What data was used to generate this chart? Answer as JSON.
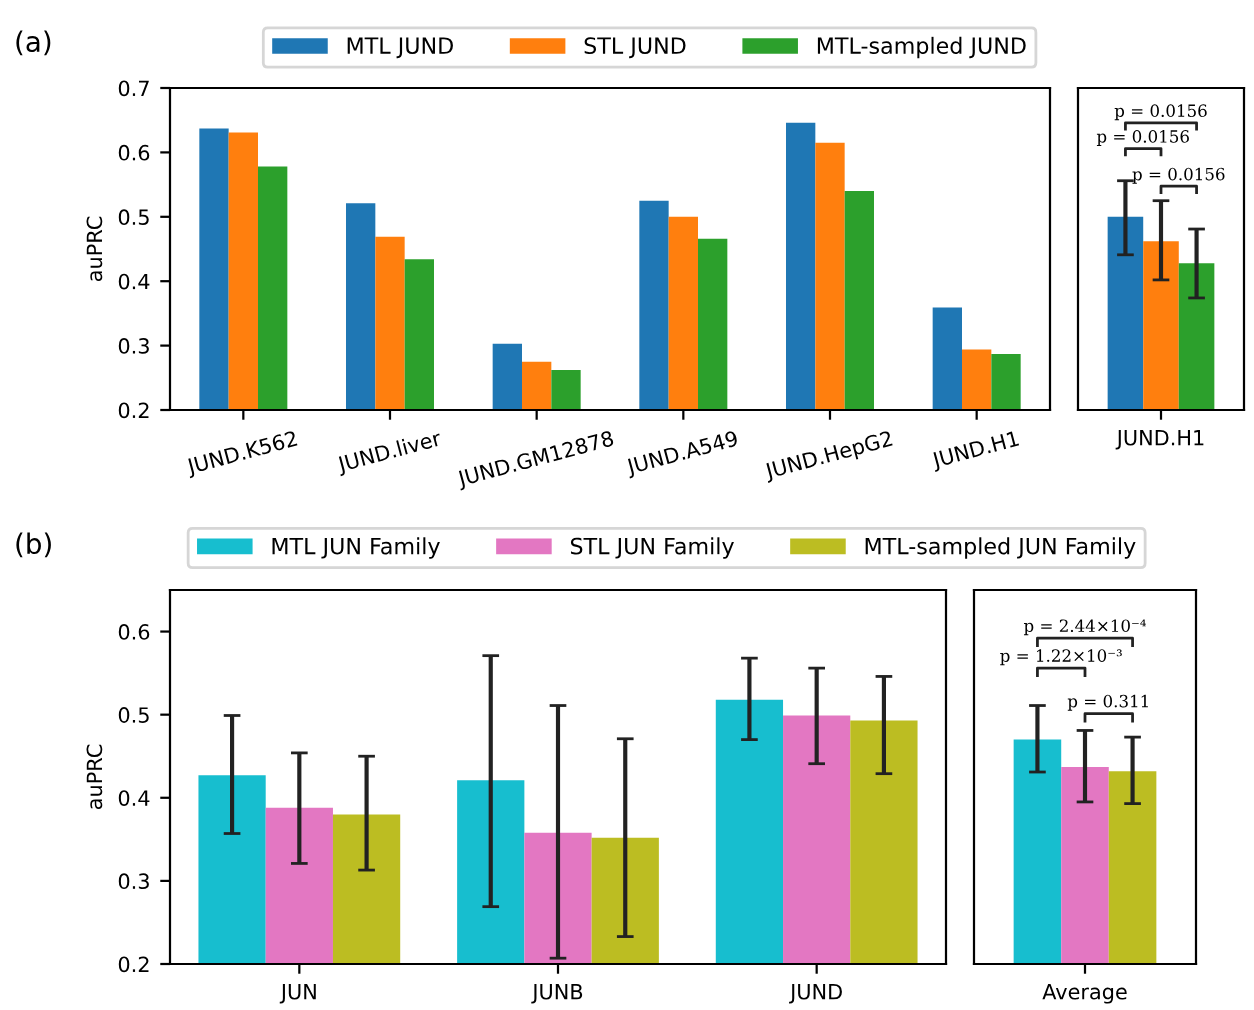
{
  "chart_data": [
    {
      "type": "bar",
      "title": "(a)",
      "ylabel": "auPRC",
      "categories": [
        "JUND.K562",
        "JUND.liver",
        "JUND.GM12878",
        "JUND.A549",
        "JUND.HepG2",
        "JUND.H1"
      ],
      "ylim": [
        0.2,
        0.7
      ],
      "yticks": [
        0.2,
        0.3,
        0.4,
        0.5,
        0.6,
        0.7
      ],
      "grid": false,
      "legend": "top",
      "series": [
        {
          "name": "MTL JUND",
          "color": "#1f77b4",
          "values": [
            0.637,
            0.521,
            0.303,
            0.525,
            0.646,
            0.359
          ]
        },
        {
          "name": "STL JUND",
          "color": "#ff7f0e",
          "values": [
            0.631,
            0.469,
            0.275,
            0.5,
            0.615,
            0.294
          ]
        },
        {
          "name": "MTL-sampled JUND",
          "color": "#2ca02c",
          "values": [
            0.578,
            0.434,
            0.262,
            0.466,
            0.54,
            0.287
          ]
        }
      ]
    },
    {
      "type": "bar",
      "categories": [
        "JUND.H1"
      ],
      "ylim": [
        0.2,
        0.7
      ],
      "yticks": [
        0.2,
        0.3,
        0.4,
        0.5,
        0.6,
        0.7
      ],
      "tick_labels": "x",
      "grid": false,
      "legend": false,
      "annotations": [
        "p = 0.0156",
        "p = 0.0156",
        "p = 0.0156"
      ],
      "series": [
        {
          "color": "#1f77b4",
          "values": [
            0.5
          ],
          "errors": [
            [
              0.441,
              0.556
            ]
          ]
        },
        {
          "color": "#ff7f0e",
          "values": [
            0.462
          ],
          "errors": [
            [
              0.402,
              0.525
            ]
          ]
        },
        {
          "color": "#2ca02c",
          "values": [
            0.428
          ],
          "errors": [
            [
              0.374,
              0.481
            ]
          ]
        }
      ]
    },
    {
      "type": "bar",
      "title": "(b)",
      "ylabel": "auPRC",
      "categories": [
        "JUN",
        "JUNB",
        "JUND"
      ],
      "ylim": [
        0.2,
        0.65
      ],
      "yticks": [
        0.2,
        0.3,
        0.4,
        0.5,
        0.6
      ],
      "grid": false,
      "legend": "top",
      "series": [
        {
          "name": "MTL JUN Family",
          "color": "#17becf",
          "values": [
            0.427,
            0.421,
            0.518
          ],
          "errors": [
            [
              0.357,
              0.499
            ],
            [
              0.269,
              0.571
            ],
            [
              0.47,
              0.568
            ]
          ]
        },
        {
          "name": "STL JUN Family",
          "color": "#e377c2",
          "values": [
            0.388,
            0.358,
            0.499
          ],
          "errors": [
            [
              0.321,
              0.454
            ],
            [
              0.207,
              0.511
            ],
            [
              0.441,
              0.556
            ]
          ]
        },
        {
          "name": "MTL-sampled JUN Family",
          "color": "#bcbd22",
          "values": [
            0.38,
            0.352,
            0.493
          ],
          "errors": [
            [
              0.313,
              0.45
            ],
            [
              0.233,
              0.471
            ],
            [
              0.429,
              0.546
            ]
          ]
        }
      ]
    },
    {
      "type": "bar",
      "categories": [
        "Average"
      ],
      "ylim": [
        0.2,
        0.65
      ],
      "yticks": [
        0.2,
        0.3,
        0.4,
        0.5,
        0.6
      ],
      "tick_labels": "x",
      "grid": false,
      "legend": false,
      "annotations": [
        "p = 2.44×10⁻⁴",
        "p = 1.22×10⁻³",
        "p = 0.311"
      ],
      "series": [
        {
          "color": "#17becf",
          "values": [
            0.47
          ],
          "errors": [
            [
              0.431,
              0.511
            ]
          ]
        },
        {
          "color": "#e377c2",
          "values": [
            0.437
          ],
          "errors": [
            [
              0.395,
              0.481
            ]
          ]
        },
        {
          "color": "#bcbd22",
          "values": [
            0.432
          ],
          "errors": [
            [
              0.393,
              0.473
            ]
          ]
        }
      ]
    }
  ]
}
